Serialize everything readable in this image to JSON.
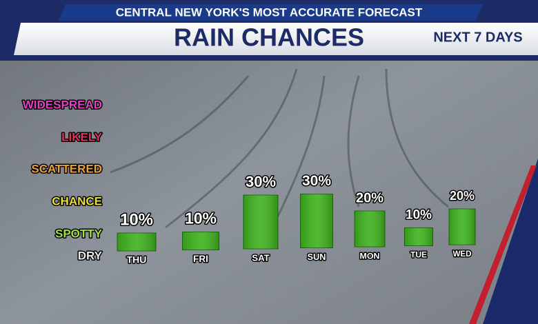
{
  "chart_data": {
    "type": "bar",
    "banner": "CENTRAL NEW YORK'S MOST ACCURATE FORECAST",
    "title": "RAIN CHANCES",
    "subtitle": "NEXT 7 DAYS",
    "levels": [
      "WIDESPREAD",
      "LIKELY",
      "SCATTERED",
      "CHANCE",
      "SPOTTY",
      "DRY"
    ],
    "level_colors": [
      "#e23fc4",
      "#e5315c",
      "#e9a23a",
      "#e6e23a",
      "#9fe33a",
      "#e8e8e8"
    ],
    "categories": [
      "THU",
      "FRI",
      "SAT",
      "SUN",
      "MON",
      "TUE",
      "WED"
    ],
    "values": [
      10,
      10,
      30,
      30,
      20,
      10,
      20
    ],
    "value_labels": [
      "10%",
      "10%",
      "30%",
      "30%",
      "20%",
      "10%",
      "20%"
    ],
    "color": "#3fb21e"
  }
}
